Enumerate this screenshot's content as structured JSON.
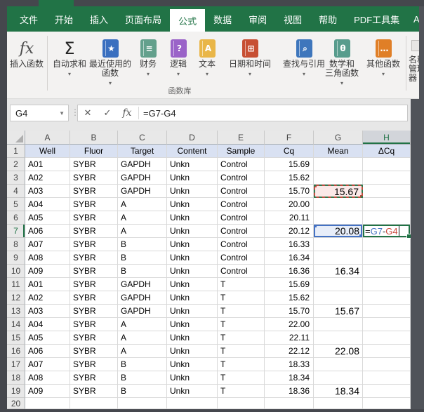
{
  "titlebar": {
    "partial_tab": "A"
  },
  "ribbon": {
    "tabs": [
      {
        "id": "file",
        "label": "文件",
        "active": false
      },
      {
        "id": "home",
        "label": "开始",
        "active": false
      },
      {
        "id": "insert",
        "label": "插入",
        "active": false
      },
      {
        "id": "page-layout",
        "label": "页面布局",
        "active": false
      },
      {
        "id": "formulas",
        "label": "公式",
        "active": true
      },
      {
        "id": "data",
        "label": "数据",
        "active": false
      },
      {
        "id": "review",
        "label": "审阅",
        "active": false
      },
      {
        "id": "view",
        "label": "视图",
        "active": false
      },
      {
        "id": "help",
        "label": "帮助",
        "active": false
      },
      {
        "id": "pdf-toolset",
        "label": "PDF工具集",
        "active": false
      }
    ],
    "group_label": "函数库",
    "library_buttons": [
      {
        "id": "insert-function",
        "lines": [
          "插入函数"
        ],
        "icon": "fx",
        "color": "",
        "arrow": false
      },
      {
        "id": "autosum",
        "lines": [
          "自动求和"
        ],
        "icon": "sigma",
        "color": "",
        "arrow": true
      },
      {
        "id": "recently-used",
        "lines": [
          "最近使用的",
          "函数"
        ],
        "icon": "book",
        "glyph": "★",
        "color": "#3A6FBF",
        "arrow": true
      },
      {
        "id": "financial",
        "lines": [
          "财务"
        ],
        "icon": "book",
        "glyph": "≡",
        "color": "#63A08C",
        "arrow": true
      },
      {
        "id": "logical",
        "lines": [
          "逻辑"
        ],
        "icon": "book",
        "glyph": "?",
        "color": "#9A63C8",
        "arrow": true
      },
      {
        "id": "text",
        "lines": [
          "文本"
        ],
        "icon": "book",
        "glyph": "A",
        "color": "#E9B648",
        "arrow": true
      },
      {
        "id": "date-time",
        "lines": [
          "日期和时间"
        ],
        "icon": "book",
        "glyph": "⊞",
        "color": "#C74F33",
        "arrow": true
      },
      {
        "id": "lookup-reference",
        "lines": [
          "查找与引用"
        ],
        "icon": "book",
        "glyph": "⌕",
        "color": "#3E76BC",
        "arrow": true
      },
      {
        "id": "math-trig",
        "lines": [
          "数学和",
          "三角函数"
        ],
        "icon": "book",
        "glyph": "θ",
        "color": "#589C8D",
        "arrow": true
      },
      {
        "id": "more-functions",
        "lines": [
          "其他函数"
        ],
        "icon": "book",
        "glyph": "…",
        "color": "#E07F27",
        "arrow": true
      }
    ],
    "partial_button": {
      "id": "name-manager",
      "label_lines": [
        "名称",
        "管理器"
      ]
    }
  },
  "formula_bar": {
    "name_box": "G4",
    "cancel": "✕",
    "enter": "✓",
    "fx": "fx",
    "formula": "=G7-G4"
  },
  "sheet": {
    "columns": [
      "A",
      "B",
      "C",
      "D",
      "E",
      "F",
      "G",
      "H"
    ],
    "active_column": "H",
    "active_row": 7,
    "header_row": [
      "Well",
      "Fluor",
      "Target",
      "Content",
      "Sample",
      "Cq",
      "Mean",
      "ΔCq"
    ],
    "rows": [
      {
        "n": 2,
        "cells": [
          "A01",
          "SYBR",
          "GAPDH",
          "Unkn",
          "Control",
          "15.69",
          "",
          ""
        ]
      },
      {
        "n": 3,
        "cells": [
          "A02",
          "SYBR",
          "GAPDH",
          "Unkn",
          "Control",
          "15.62",
          "",
          ""
        ]
      },
      {
        "n": 4,
        "cells": [
          "A03",
          "SYBR",
          "GAPDH",
          "Unkn",
          "Control",
          "15.70",
          "15.67",
          ""
        ],
        "mean_style": "ref-red"
      },
      {
        "n": 5,
        "cells": [
          "A04",
          "SYBR",
          "A",
          "Unkn",
          "Control",
          "20.00",
          "",
          ""
        ]
      },
      {
        "n": 6,
        "cells": [
          "A05",
          "SYBR",
          "A",
          "Unkn",
          "Control",
          "20.11",
          "",
          ""
        ]
      },
      {
        "n": 7,
        "cells": [
          "A06",
          "SYBR",
          "A",
          "Unkn",
          "Control",
          "20.12",
          "20.08",
          ""
        ],
        "mean_style": "ref-blue",
        "editing": true
      },
      {
        "n": 8,
        "cells": [
          "A07",
          "SYBR",
          "B",
          "Unkn",
          "Control",
          "16.33",
          "",
          ""
        ]
      },
      {
        "n": 9,
        "cells": [
          "A08",
          "SYBR",
          "B",
          "Unkn",
          "Control",
          "16.34",
          "",
          ""
        ]
      },
      {
        "n": 10,
        "cells": [
          "A09",
          "SYBR",
          "B",
          "Unkn",
          "Control",
          "16.36",
          "16.34",
          ""
        ]
      },
      {
        "n": 11,
        "cells": [
          "A01",
          "SYBR",
          "GAPDH",
          "Unkn",
          "T",
          "15.69",
          "",
          ""
        ]
      },
      {
        "n": 12,
        "cells": [
          "A02",
          "SYBR",
          "GAPDH",
          "Unkn",
          "T",
          "15.62",
          "",
          ""
        ]
      },
      {
        "n": 13,
        "cells": [
          "A03",
          "SYBR",
          "GAPDH",
          "Unkn",
          "T",
          "15.70",
          "15.67",
          ""
        ]
      },
      {
        "n": 14,
        "cells": [
          "A04",
          "SYBR",
          "A",
          "Unkn",
          "T",
          "22.00",
          "",
          ""
        ]
      },
      {
        "n": 15,
        "cells": [
          "A05",
          "SYBR",
          "A",
          "Unkn",
          "T",
          "22.11",
          "",
          ""
        ]
      },
      {
        "n": 16,
        "cells": [
          "A06",
          "SYBR",
          "A",
          "Unkn",
          "T",
          "22.12",
          "22.08",
          ""
        ]
      },
      {
        "n": 17,
        "cells": [
          "A07",
          "SYBR",
          "B",
          "Unkn",
          "T",
          "18.33",
          "",
          ""
        ]
      },
      {
        "n": 18,
        "cells": [
          "A08",
          "SYBR",
          "B",
          "Unkn",
          "T",
          "18.34",
          "",
          ""
        ]
      },
      {
        "n": 19,
        "cells": [
          "A09",
          "SYBR",
          "B",
          "Unkn",
          "T",
          "18.36",
          "18.34",
          ""
        ]
      },
      {
        "n": 20,
        "cells": [
          "",
          "",
          "",
          "",
          "",
          "",
          "",
          ""
        ]
      }
    ],
    "edit_cell": {
      "row": 7,
      "col": "H",
      "tokens": [
        {
          "t": "=",
          "c": "plain"
        },
        {
          "t": "G7",
          "c": "blue"
        },
        {
          "t": "-",
          "c": "plain"
        },
        {
          "t": "G4",
          "c": "red"
        }
      ]
    }
  },
  "colors": {
    "excel_green": "#217346",
    "ref_blue": "#4472C4",
    "ref_red": "#CB4A3F",
    "ref_blue_fill": "#E8EEF9",
    "ref_red_fill": "#FBE9E8",
    "header_row_fill": "#D9E1F2"
  }
}
